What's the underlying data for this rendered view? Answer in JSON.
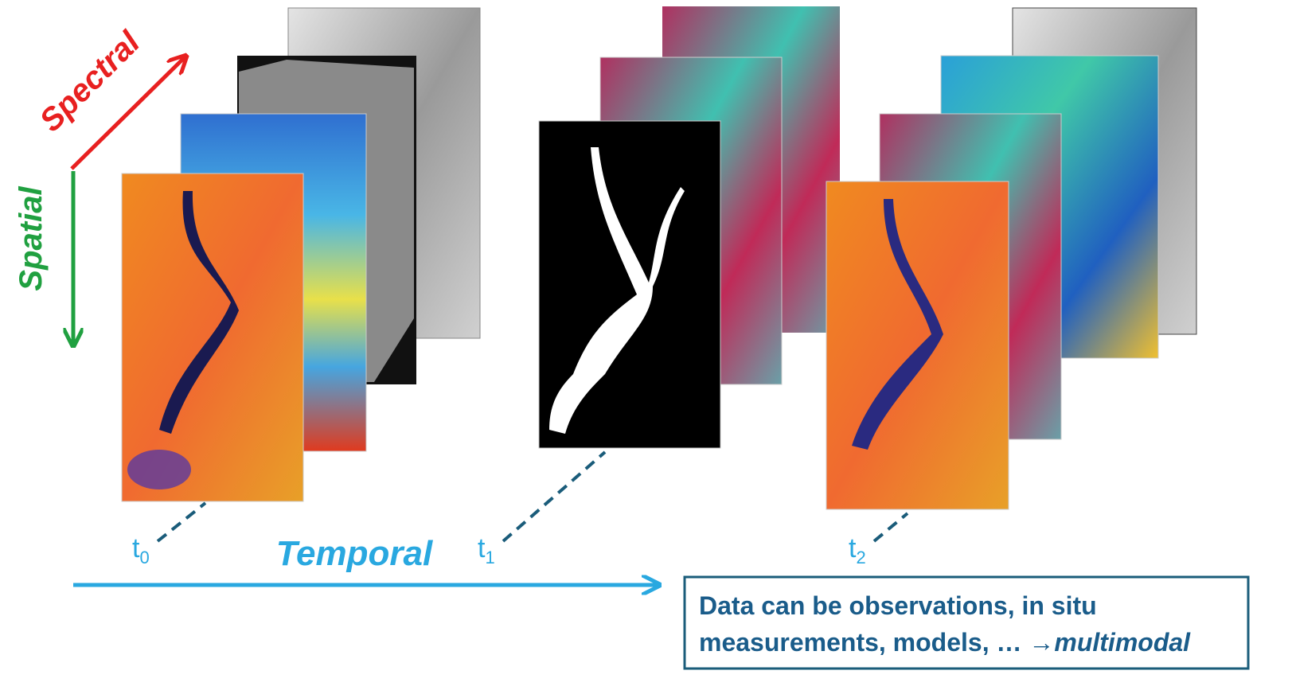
{
  "axes": {
    "spectral": "Spectral",
    "spatial": "Spatial",
    "temporal": "Temporal"
  },
  "times": [
    {
      "base": "t",
      "sub": "0"
    },
    {
      "base": "t",
      "sub": "1"
    },
    {
      "base": "t",
      "sub": "2"
    }
  ],
  "note": {
    "line1": "Data can be observations, in situ",
    "line2": "measurements, models, … ",
    "emphasis": "→multimodal"
  }
}
